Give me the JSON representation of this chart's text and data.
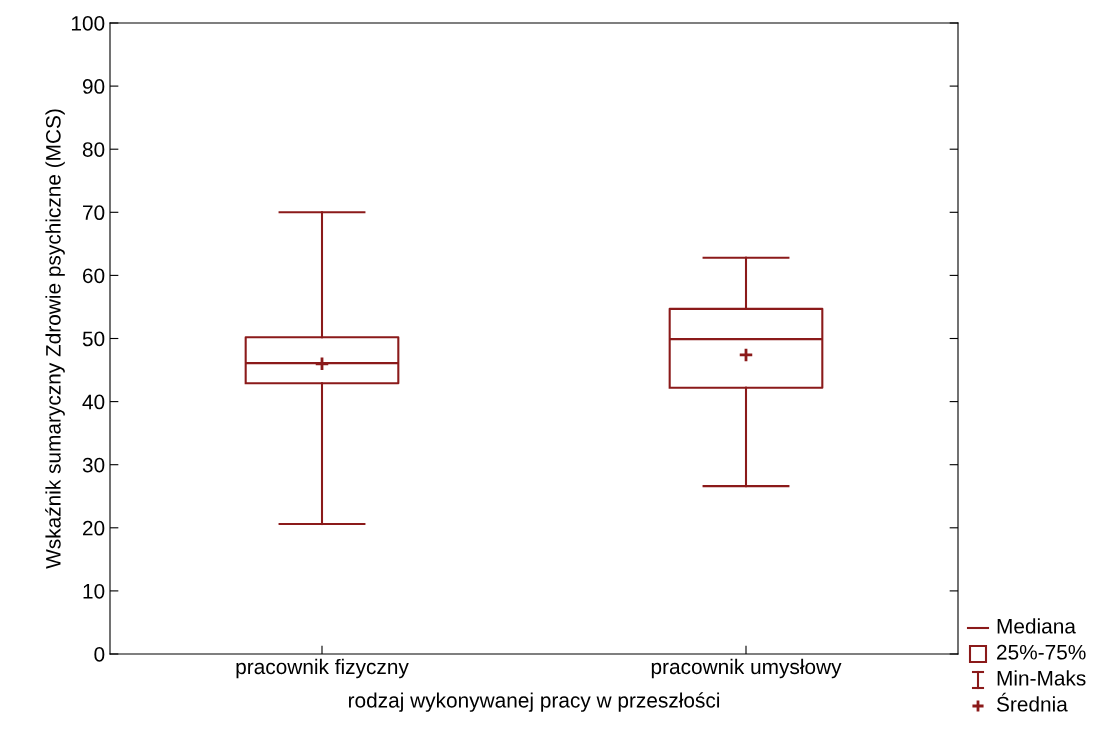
{
  "chart_data": {
    "type": "box",
    "xlabel": "rodzaj wykonywanej pracy w przeszłości",
    "ylabel": "Wskaźnik sumaryczny Zdrowie psychiczne (MCS)",
    "categories": [
      "pracownik fizyczny",
      "pracownik umysłowy"
    ],
    "series": [
      {
        "color": "#8b1a1a",
        "boxes": [
          {
            "low": 20.6,
            "q1": 42.9,
            "median": 46.1,
            "q3": 50.2,
            "high": 70.0,
            "mean": 46.0
          },
          {
            "low": 26.6,
            "q1": 42.2,
            "median": 49.9,
            "q3": 54.7,
            "high": 62.8,
            "mean": 47.4
          }
        ]
      }
    ],
    "ylim": [
      0,
      100
    ],
    "yticks": [
      0,
      10,
      20,
      30,
      40,
      50,
      60,
      70,
      80,
      90,
      100
    ],
    "grid": false,
    "marker": "cross",
    "annotations": [
      "Mediana",
      "25%-75%",
      "Min-Maks",
      "Średnia"
    ]
  }
}
